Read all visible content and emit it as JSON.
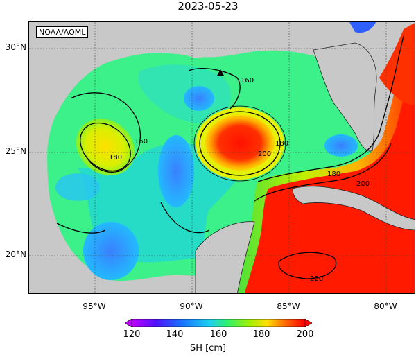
{
  "title": "2023-05-23",
  "credit": "NOAA/AOML",
  "lat_labels": [
    "30°N",
    "25°N",
    "20°N"
  ],
  "lon_labels": [
    "95°W",
    "90°W",
    "85°W",
    "80°W"
  ],
  "contour_labels": [
    "160",
    "160",
    "180",
    "180",
    "200",
    "180",
    "200",
    "220"
  ],
  "colorbar": {
    "title": "SH [cm]",
    "ticks": [
      "120",
      "140",
      "160",
      "180",
      "200"
    ],
    "range": [
      120,
      200
    ]
  },
  "colors": {
    "land": "#c8c8c8",
    "low": "#b000ff",
    "mid": "#22d0f0",
    "high": "#ff1a00"
  },
  "marker": "triangle-marker"
}
